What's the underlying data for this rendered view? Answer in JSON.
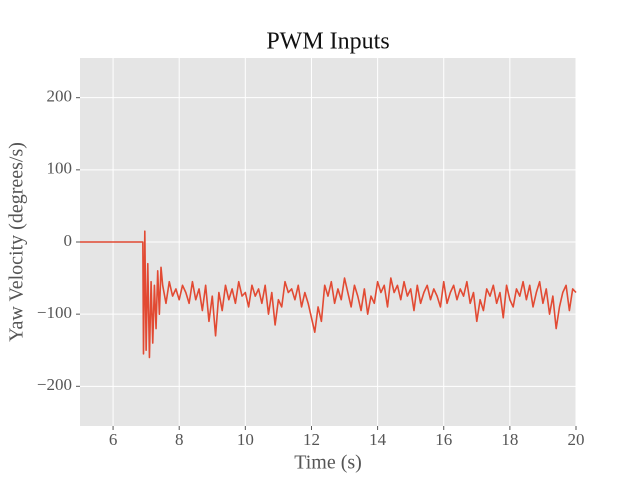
{
  "chart_data": {
    "type": "line",
    "title": "PWM Inputs",
    "x_label": "Time (s)",
    "y_label": "Yaw Velocity (degrees/s)",
    "color": "#e24a33",
    "grid": true,
    "xlim": [
      5,
      20
    ],
    "ylim": [
      -255,
      255
    ],
    "xticks": [
      6,
      8,
      10,
      12,
      14,
      16,
      18,
      20
    ],
    "yticks": [
      {
        "value": -200,
        "label": "−200"
      },
      {
        "value": -100,
        "label": "−100"
      },
      0,
      100,
      200
    ],
    "x": [
      5,
      6.9,
      6.92,
      6.96,
      7.0,
      7.05,
      7.1,
      7.15,
      7.2,
      7.25,
      7.3,
      7.35,
      7.4,
      7.45,
      7.5,
      7.6,
      7.7,
      7.8,
      7.9,
      8.0,
      8.1,
      8.2,
      8.3,
      8.4,
      8.5,
      8.6,
      8.7,
      8.8,
      8.9,
      9.0,
      9.1,
      9.2,
      9.3,
      9.4,
      9.5,
      9.6,
      9.7,
      9.8,
      9.9,
      10.0,
      10.1,
      10.2,
      10.3,
      10.4,
      10.5,
      10.6,
      10.7,
      10.8,
      10.9,
      11.0,
      11.1,
      11.2,
      11.3,
      11.4,
      11.5,
      11.6,
      11.7,
      11.8,
      11.9,
      12.0,
      12.1,
      12.2,
      12.3,
      12.4,
      12.5,
      12.6,
      12.7,
      12.8,
      12.9,
      13.0,
      13.1,
      13.2,
      13.3,
      13.4,
      13.5,
      13.6,
      13.7,
      13.8,
      13.9,
      14.0,
      14.1,
      14.2,
      14.3,
      14.4,
      14.5,
      14.6,
      14.7,
      14.8,
      14.9,
      15.0,
      15.1,
      15.2,
      15.3,
      15.4,
      15.5,
      15.6,
      15.7,
      15.8,
      15.9,
      16.0,
      16.1,
      16.2,
      16.3,
      16.4,
      16.5,
      16.6,
      16.7,
      16.8,
      16.9,
      17.0,
      17.1,
      17.2,
      17.3,
      17.4,
      17.5,
      17.6,
      17.7,
      17.8,
      17.9,
      18.0,
      18.1,
      18.2,
      18.3,
      18.4,
      18.5,
      18.6,
      18.7,
      18.8,
      18.9,
      19.0,
      19.1,
      19.2,
      19.3,
      19.4,
      19.5,
      19.6,
      19.7,
      19.8,
      19.9,
      20.0
    ],
    "values": [
      0,
      0,
      -155,
      15,
      -150,
      -30,
      -160,
      -55,
      -140,
      -60,
      -120,
      -40,
      -100,
      -35,
      -60,
      -85,
      -55,
      -75,
      -65,
      -80,
      -60,
      -70,
      -85,
      -55,
      -80,
      -65,
      -95,
      -60,
      -110,
      -75,
      -130,
      -70,
      -95,
      -60,
      -80,
      -65,
      -85,
      -55,
      -75,
      -70,
      -90,
      -60,
      -75,
      -65,
      -85,
      -60,
      -100,
      -70,
      -115,
      -80,
      -90,
      -55,
      -70,
      -65,
      -80,
      -60,
      -90,
      -70,
      -85,
      -105,
      -125,
      -90,
      -110,
      -60,
      -75,
      -55,
      -85,
      -65,
      -80,
      -50,
      -70,
      -90,
      -60,
      -75,
      -95,
      -65,
      -100,
      -75,
      -85,
      -55,
      -70,
      -60,
      -90,
      -50,
      -70,
      -60,
      -80,
      -55,
      -75,
      -65,
      -95,
      -60,
      -85,
      -70,
      -60,
      -80,
      -65,
      -75,
      -90,
      -55,
      -85,
      -70,
      -60,
      -80,
      -65,
      -75,
      -55,
      -85,
      -70,
      -110,
      -80,
      -95,
      -65,
      -75,
      -60,
      -85,
      -70,
      -105,
      -60,
      -80,
      -90,
      -65,
      -75,
      -55,
      -80,
      -60,
      -90,
      -70,
      -55,
      -85,
      -65,
      -100,
      -75,
      -120,
      -90,
      -70,
      -60,
      -95,
      -65,
      -70
    ]
  }
}
